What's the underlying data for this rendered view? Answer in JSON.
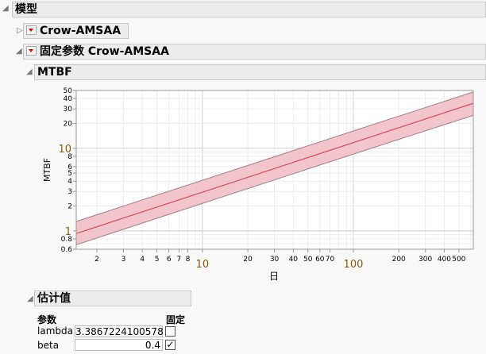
{
  "outline": {
    "title": "模型",
    "crow_amsaa": "Crow-AMSAA",
    "fixed_crow_amsaa": "固定参数 Crow-AMSAA",
    "mtbf_title": "MTBF",
    "estimates_title": "估计值"
  },
  "chart_data": {
    "type": "line",
    "xlabel": "日",
    "ylabel": "MTBF",
    "x_scale": "log",
    "y_scale": "log",
    "xlim": [
      1.46,
      623
    ],
    "ylim": [
      0.6,
      50
    ],
    "x_ticks": [
      "2",
      "3",
      "4",
      "5",
      "6",
      "7",
      "8",
      "10",
      "20",
      "30",
      "40",
      "50",
      "60",
      "70",
      "100",
      "200",
      "300",
      "400",
      "500"
    ],
    "y_ticks": [
      "0.6",
      "0.8",
      "1",
      "2",
      "3",
      "4",
      "5",
      "6",
      "8",
      "10",
      "20",
      "30",
      "40",
      "50"
    ],
    "series": [
      {
        "x": [
          1.46,
          10,
          100,
          623
        ],
        "values": [
          0.93,
          2.94,
          11.7,
          35
        ]
      }
    ],
    "band_upper": [
      1.3,
      4.1,
      16.2,
      48
    ],
    "band_lower": [
      0.68,
      2.15,
      8.5,
      25
    ],
    "grid": true,
    "line_color": "#d94a5a",
    "band_color": "#f2c4cb"
  },
  "estimates": {
    "param_header": "参数",
    "fixed_header": "固定",
    "rows": [
      {
        "name": "lambda",
        "value": "3.3867224100578",
        "fixed": false
      },
      {
        "name": "beta",
        "value": "0.4",
        "fixed": true
      }
    ],
    "check_mark": "✓"
  }
}
